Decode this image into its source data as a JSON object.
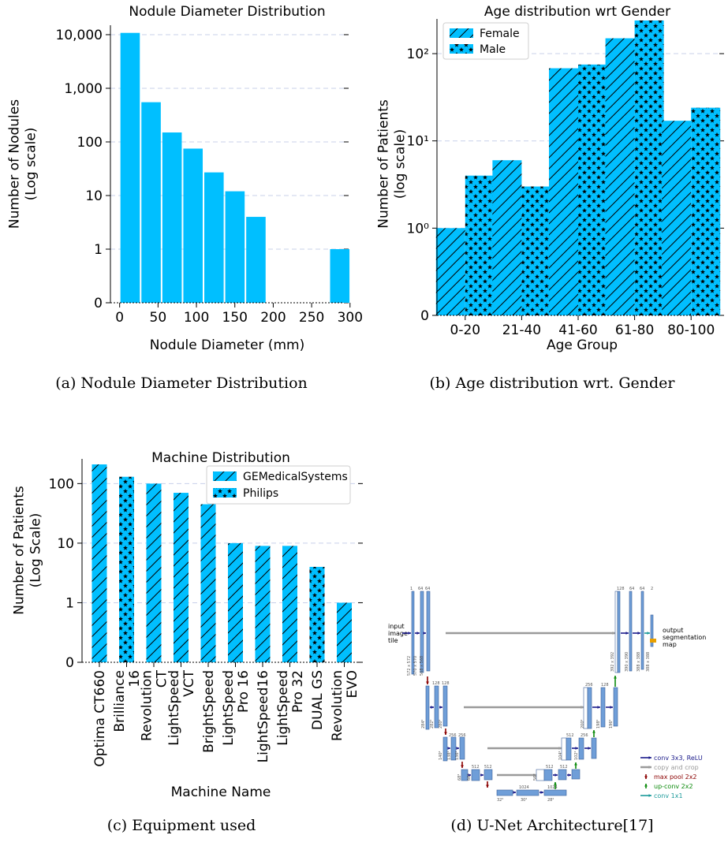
{
  "captions": {
    "a": "(a) Nodule Diameter Distribution",
    "b": "(b) Age distribution wrt. Gender",
    "c": "(c) Equipment used",
    "d": "(d) U-Net Architecture[17]"
  },
  "colors": {
    "bar": "#00bfff",
    "grid": "#c8d0ea"
  },
  "chart_data": [
    {
      "id": "a",
      "type": "bar",
      "title": "Nodule Diameter Distribution",
      "xlabel": "Nodule Diameter (mm)",
      "ylabel_lines": [
        "Number of Nodules",
        "(Log scale)"
      ],
      "yscale": "symlog",
      "xlim": [
        -12,
        292
      ],
      "x_ticks": [
        0,
        50,
        100,
        150,
        200,
        250,
        300
      ],
      "x_tick_labels": [
        "0",
        "50",
        "100",
        "150",
        "200",
        "250",
        "300"
      ],
      "y_ticks": [
        0,
        1,
        10,
        100,
        1000,
        10000
      ],
      "y_tick_labels": [
        "0",
        "1",
        "10",
        "100",
        "1,000",
        "10,000"
      ],
      "bin_width": 27.3,
      "bin_left_edges": [
        0,
        27.3,
        54.6,
        81.9,
        109.2,
        136.5,
        163.8,
        191.1,
        218.4,
        245.7,
        273
      ],
      "values": [
        10800,
        550,
        150,
        75,
        27,
        12,
        4,
        0,
        0,
        0,
        1
      ],
      "grid": "y-dashed"
    },
    {
      "id": "b",
      "type": "bar",
      "title": "Age distribution wrt Gender",
      "xlabel": "Age Group",
      "ylabel_lines": [
        "Number of Patients",
        "(log scale)"
      ],
      "yscale": "symlog",
      "categories": [
        "0-20",
        "21-40",
        "41-60",
        "61-80",
        "80-100"
      ],
      "y_ticks": [
        0,
        1,
        10,
        100
      ],
      "y_tick_labels": [
        "0",
        "10⁰",
        "10¹",
        "10²"
      ],
      "series": [
        {
          "name": "Female",
          "pattern": "hatch",
          "values": [
            1,
            6,
            68,
            150,
            17
          ]
        },
        {
          "name": "Male",
          "pattern": "stars",
          "values": [
            4,
            3,
            75,
            240,
            24
          ]
        }
      ],
      "legend": "top-left",
      "grid": "y-dashed"
    },
    {
      "id": "c",
      "type": "bar",
      "title": "Machine Distribution",
      "xlabel": "Machine Name",
      "ylabel_lines": [
        "Number of Patients",
        "(Log Scale)"
      ],
      "yscale": "symlog",
      "categories": [
        "Optima CT660",
        "Brilliance 16",
        "Revolution CT",
        "LightSpeed VCT",
        "BrightSpeed",
        "LightSpeed Pro 16",
        "LightSpeed16",
        "LightSpeed Pro 32",
        "DUAL GS",
        "Revolution EVO"
      ],
      "category_label_lines": [
        [
          "Optima CT660"
        ],
        [
          "Brilliance",
          "16"
        ],
        [
          "Revolution",
          "CT"
        ],
        [
          "LightSpeed",
          "VCT"
        ],
        [
          "BrightSpeed"
        ],
        [
          "LightSpeed",
          "Pro 16"
        ],
        [
          "LightSpeed16"
        ],
        [
          "LightSpeed",
          "Pro 32"
        ],
        [
          "DUAL GS"
        ],
        [
          "Revolution",
          "EVO"
        ]
      ],
      "values": [
        210,
        130,
        100,
        70,
        45,
        10,
        9,
        9,
        4,
        1
      ],
      "manufacturer": [
        "GEMedicalSystems",
        "Philips",
        "GEMedicalSystems",
        "GEMedicalSystems",
        "GEMedicalSystems",
        "GEMedicalSystems",
        "GEMedicalSystems",
        "GEMedicalSystems",
        "Philips",
        "GEMedicalSystems"
      ],
      "series_names": [
        "GEMedicalSystems",
        "Philips"
      ],
      "y_ticks": [
        0,
        1,
        10,
        100
      ],
      "y_tick_labels": [
        "0",
        "1",
        "10",
        "100"
      ],
      "legend": "top-right",
      "grid": "y-dashed"
    }
  ],
  "unet": {
    "labels": {
      "input": [
        "input",
        "image",
        "tile"
      ],
      "output": [
        "output",
        "segmentation",
        "map"
      ],
      "channels": [
        "1",
        "64",
        "64",
        "128",
        "128",
        "256",
        "256",
        "512",
        "512",
        "1024",
        "1024",
        "512",
        "512",
        "256",
        "128",
        "128",
        "64",
        "64",
        "2"
      ],
      "sizes": [
        "572 x 572",
        "570 x 570",
        "568 x 568",
        "284²",
        "282²",
        "280²",
        "140²",
        "138²",
        "136²",
        "68²",
        "66²",
        "64²",
        "32²",
        "30²",
        "28²",
        "56²",
        "54²",
        "52²",
        "104²",
        "102²",
        "100²",
        "200²",
        "198²",
        "196²",
        "392 x 392",
        "390 x 390",
        "388 x 388",
        "388 x 388"
      ]
    },
    "legend": [
      {
        "label": "conv 3x3, ReLU",
        "color": "#1b1b8a"
      },
      {
        "label": "copy and crop",
        "color": "#9a9a9a"
      },
      {
        "label": "max pool 2x2",
        "color": "#8b0000"
      },
      {
        "label": "up-conv 2x2",
        "color": "#0b8a0b"
      },
      {
        "label": "conv 1x1",
        "color": "#1b9a9a"
      }
    ]
  }
}
